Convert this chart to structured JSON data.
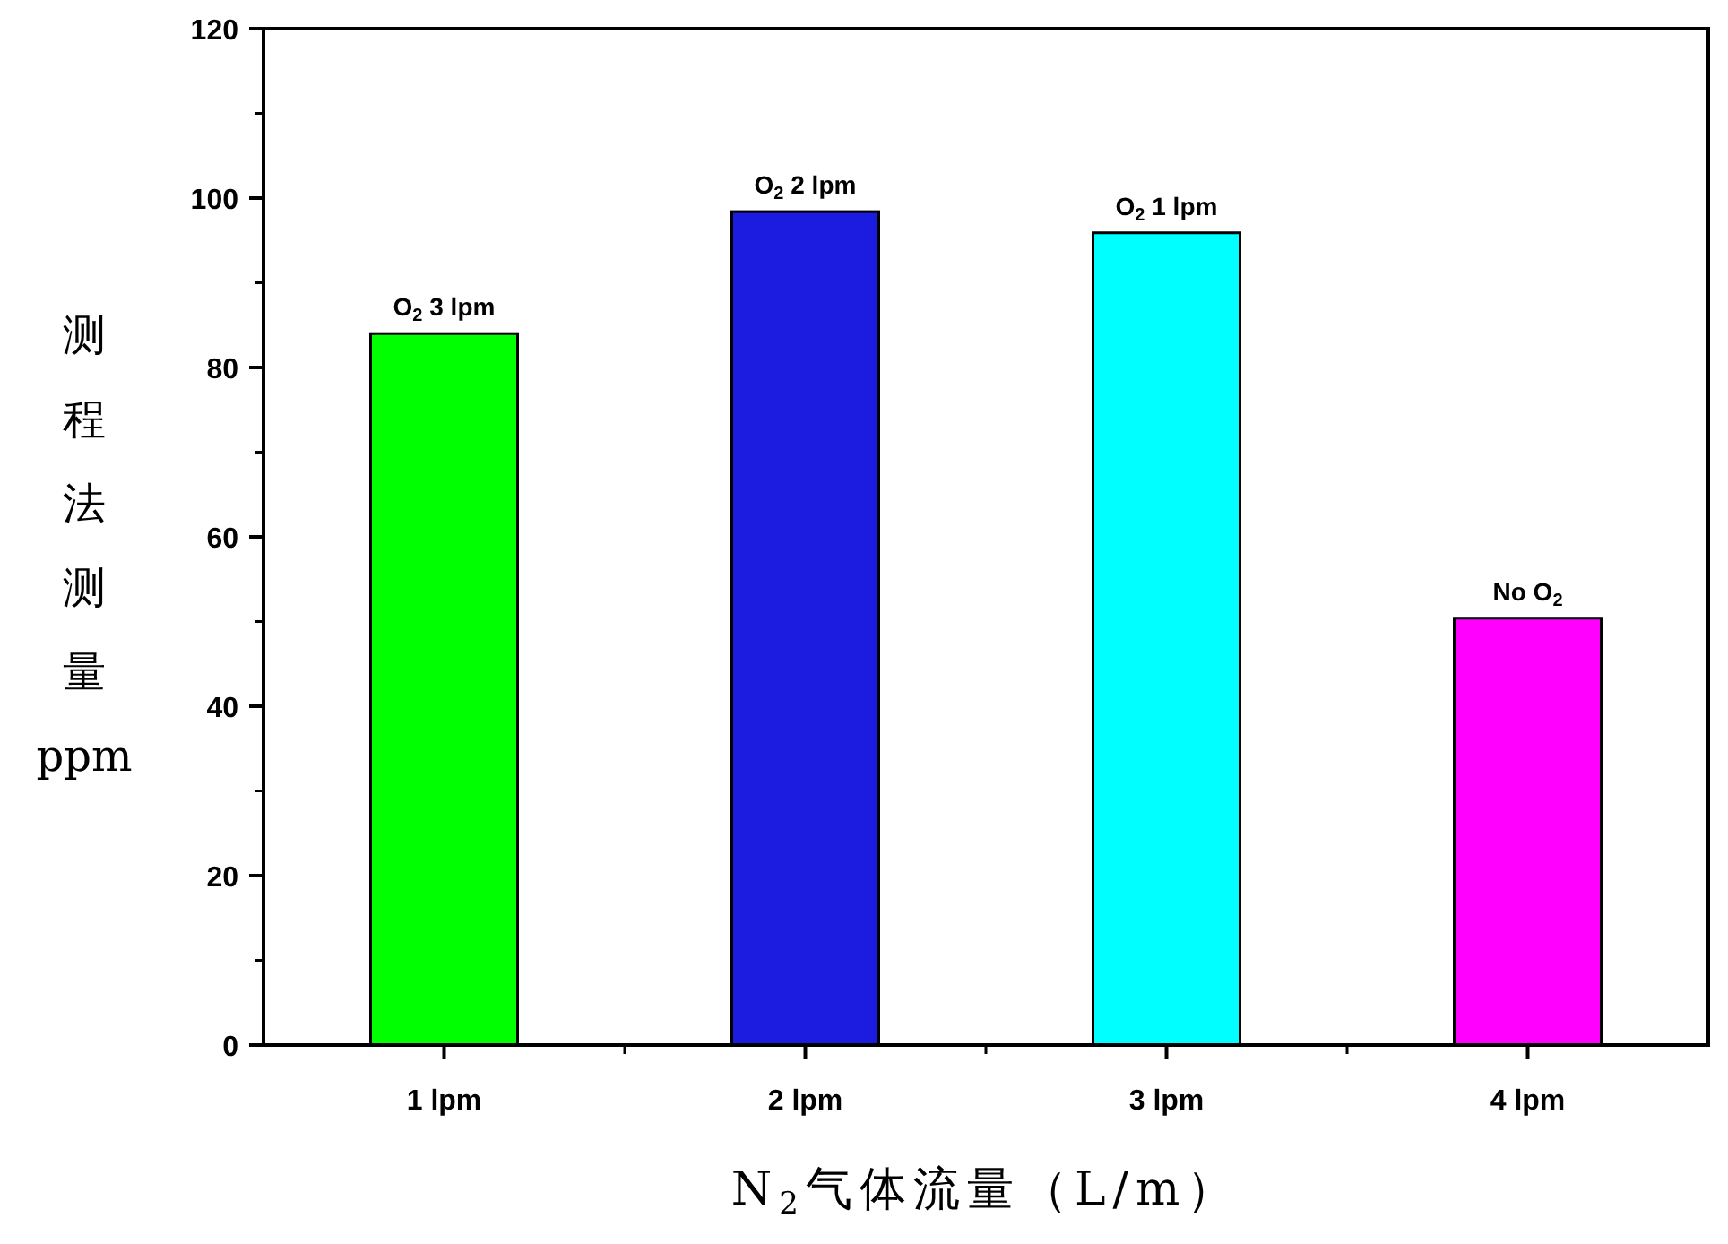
{
  "chart_data": {
    "type": "bar",
    "categories": [
      "1 lpm",
      "2 lpm",
      "3 lpm",
      "4 lpm"
    ],
    "values": [
      84,
      98.4,
      95.9,
      50.4
    ],
    "colors": [
      "#00ff00",
      "#1c1ce0",
      "#00ffff",
      "#ff00ff"
    ],
    "ylim": [
      0,
      120
    ],
    "yticks": [
      0,
      20,
      40,
      60,
      80,
      100,
      120
    ],
    "xlabel": "N$_{2}$气体流量（L/m）",
    "ylabel": "测程法测量ppm",
    "annotations": [
      {
        "text": "O$_{2}$ 3 lpm",
        "x": "1 lpm",
        "y": 84
      },
      {
        "text": "O$_{2}$ 2 lpm",
        "x": "2 lpm",
        "y": 98.4
      },
      {
        "text": "O$_{2}$ 1 lpm",
        "x": "3 lpm",
        "y": 95.9
      },
      {
        "text": "No O$_{2}$",
        "x": "4 lpm",
        "y": 50.4
      }
    ]
  }
}
